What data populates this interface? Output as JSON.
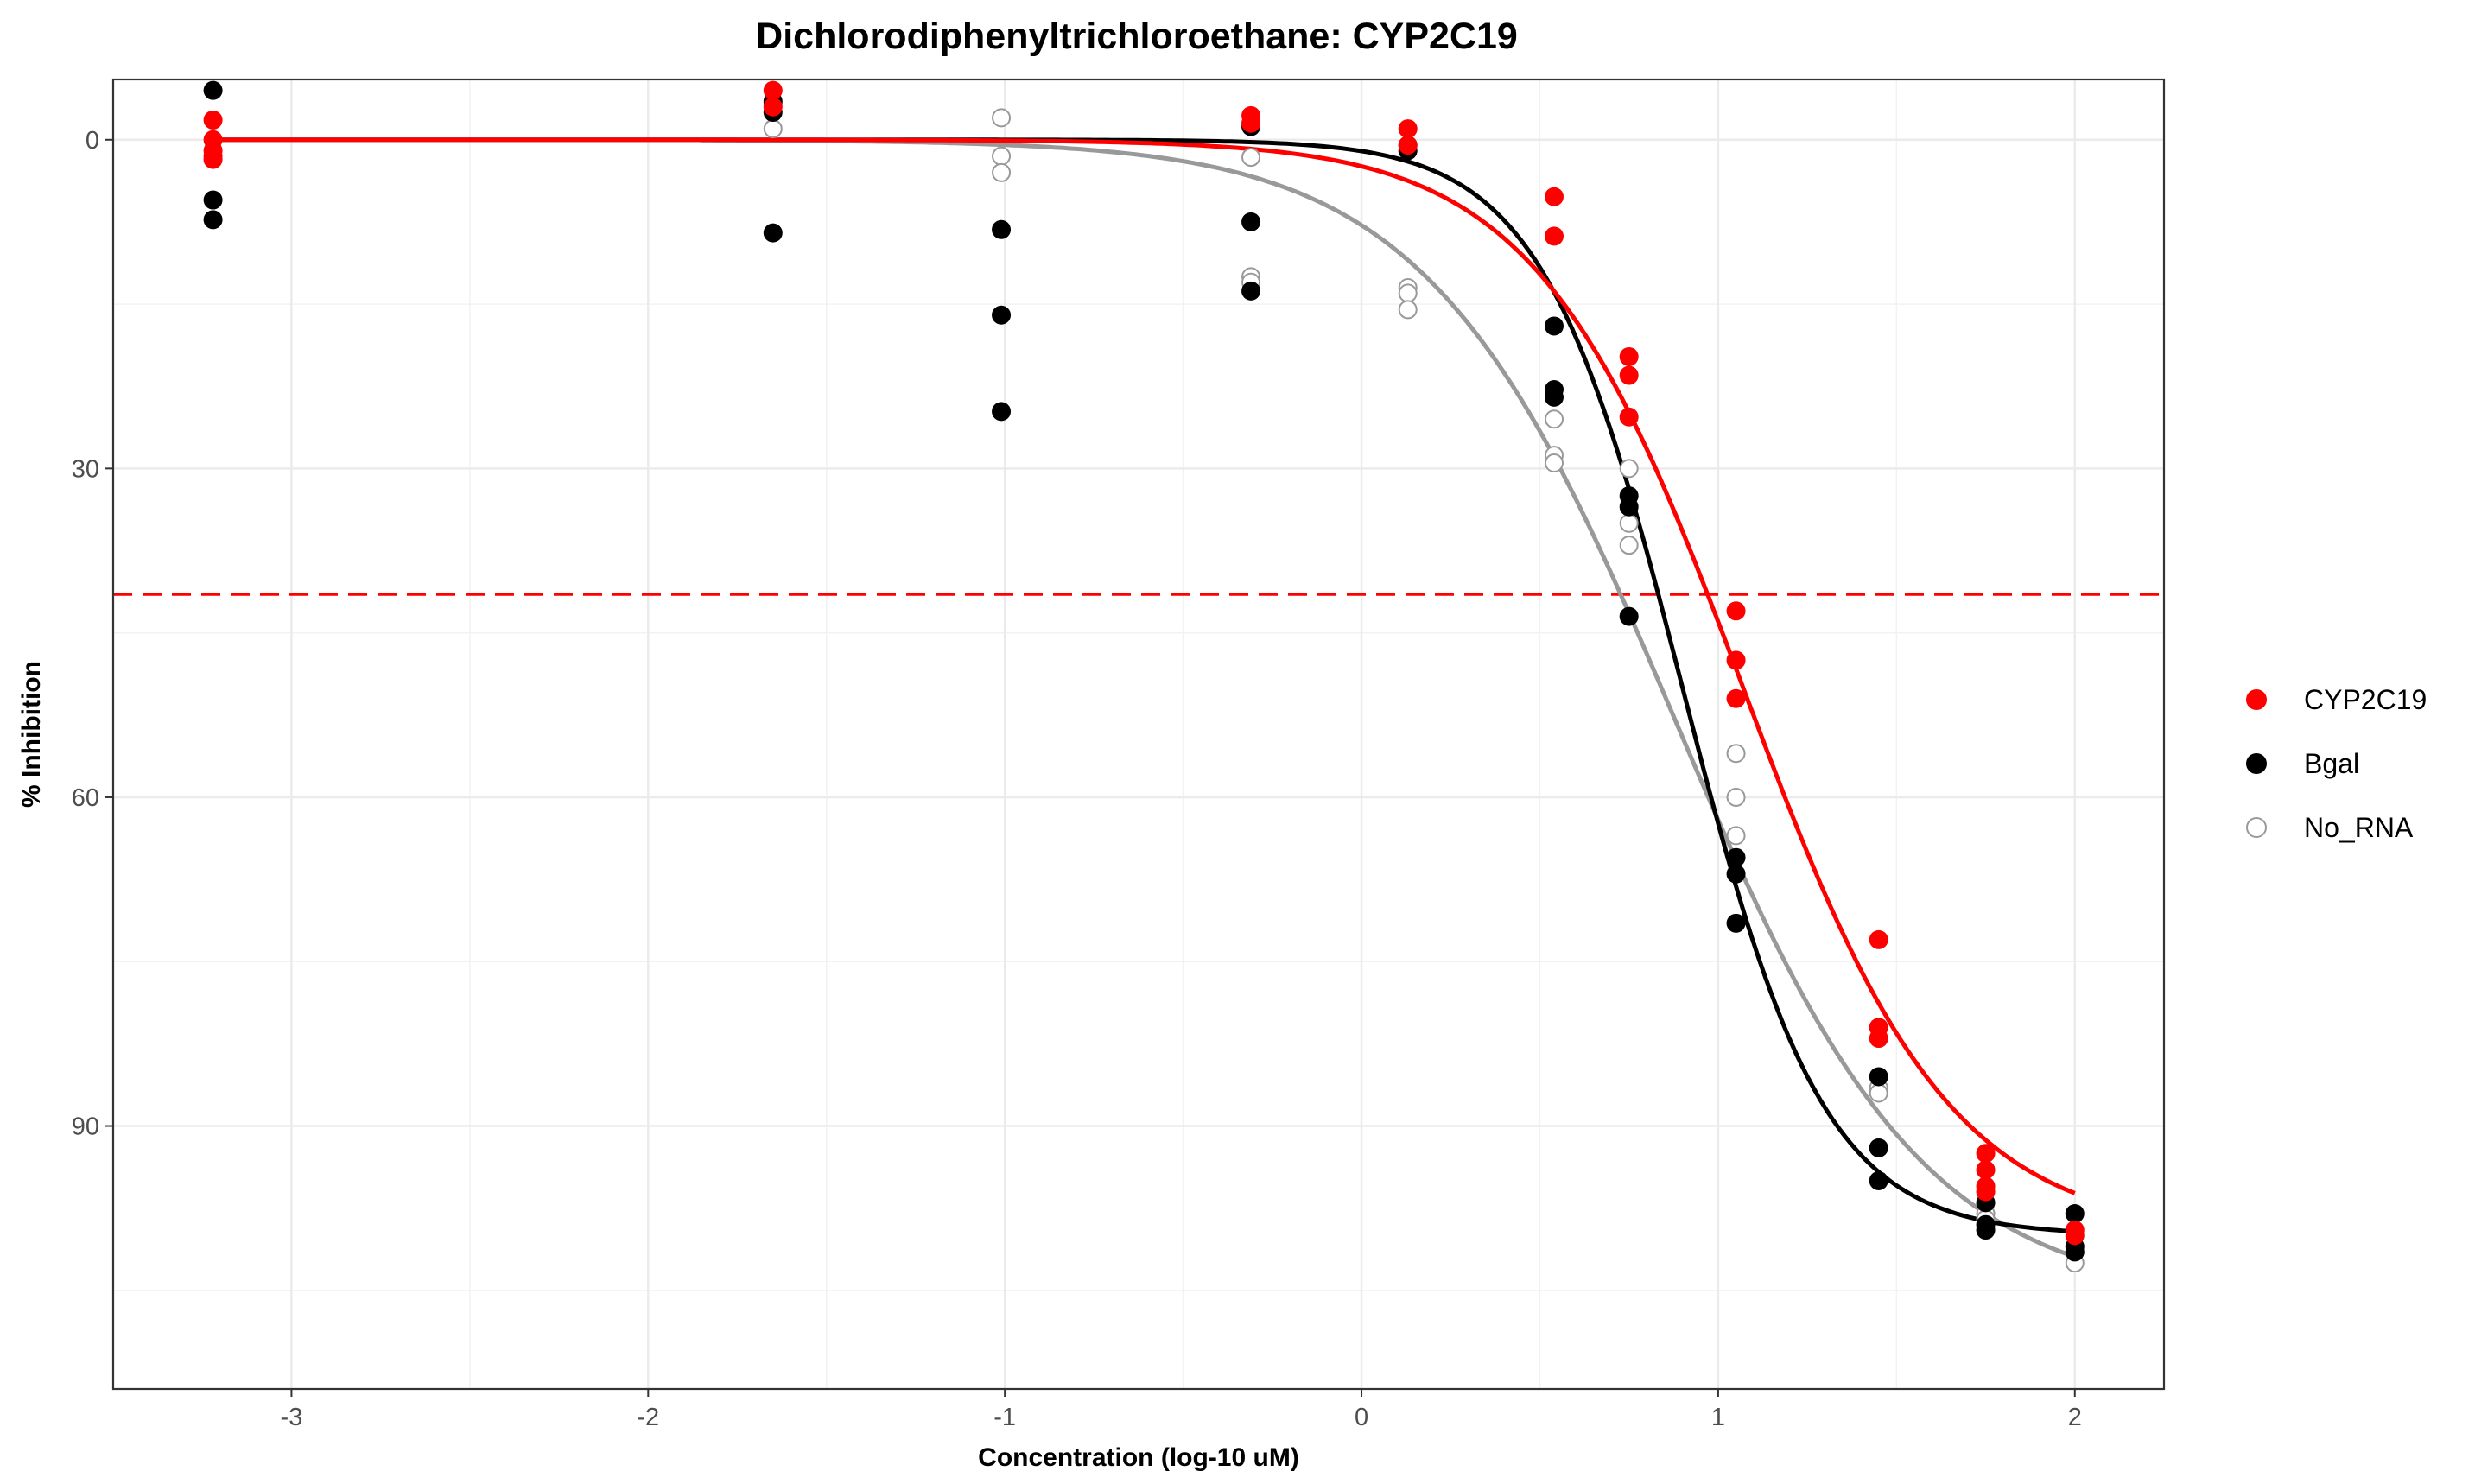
{
  "chart_data": {
    "type": "scatter",
    "title": "Dichlorodiphenyltrichloroethane: CYP2C19",
    "xlabel": "Concentration (log-10 uM)",
    "ylabel": "% Inhibition",
    "xlim": [
      -3.5,
      2.25
    ],
    "ylim": [
      -5.5,
      114
    ],
    "y_reversed": true,
    "x_ticks": [
      -3,
      -2,
      -1,
      0,
      1,
      2
    ],
    "y_ticks": [
      0,
      30,
      60,
      90
    ],
    "grid": true,
    "legend_position": "right",
    "reference_line": {
      "y": 41.5,
      "style": "dashed",
      "color": "#ff0000"
    },
    "series": [
      {
        "name": "CYP2C19",
        "color": "#ff0000",
        "marker": "filled-circle",
        "points": [
          [
            -3.22,
            -1.8
          ],
          [
            -3.22,
            0.0
          ],
          [
            -3.22,
            1.0
          ],
          [
            -3.22,
            1.5
          ],
          [
            -3.22,
            1.8
          ],
          [
            -1.65,
            -4.5
          ],
          [
            -1.65,
            -3.0
          ],
          [
            -0.31,
            -2.2
          ],
          [
            -0.31,
            -1.5
          ],
          [
            0.13,
            -1.0
          ],
          [
            0.13,
            0.5
          ],
          [
            0.54,
            5.2
          ],
          [
            0.54,
            8.8
          ],
          [
            0.75,
            19.8
          ],
          [
            0.75,
            21.5
          ],
          [
            0.75,
            25.3
          ],
          [
            1.05,
            43.0
          ],
          [
            1.05,
            47.5
          ],
          [
            1.05,
            51.0
          ],
          [
            1.45,
            73.0
          ],
          [
            1.45,
            81.0
          ],
          [
            1.45,
            82.0
          ],
          [
            1.75,
            92.5
          ],
          [
            1.75,
            94.0
          ],
          [
            1.75,
            95.5
          ],
          [
            1.75,
            96.0
          ],
          [
            2.0,
            99.5
          ],
          [
            2.0,
            100.0
          ]
        ],
        "curve": {
          "bottom": 0.0,
          "top": 100.0,
          "logIC50": 1.07,
          "hill": 1.5
        }
      },
      {
        "name": "Bgal",
        "color": "#000000",
        "marker": "filled-circle",
        "points": [
          [
            -3.22,
            -4.5
          ],
          [
            -3.22,
            5.5
          ],
          [
            -3.22,
            7.3
          ],
          [
            -1.65,
            -3.5
          ],
          [
            -1.65,
            -2.5
          ],
          [
            -1.65,
            8.5
          ],
          [
            -1.01,
            8.2
          ],
          [
            -1.01,
            16.0
          ],
          [
            -1.01,
            24.8
          ],
          [
            -0.31,
            -1.2
          ],
          [
            -0.31,
            7.5
          ],
          [
            -0.31,
            13.8
          ],
          [
            0.13,
            0.5
          ],
          [
            0.13,
            1.0
          ],
          [
            0.54,
            17.0
          ],
          [
            0.54,
            22.8
          ],
          [
            0.54,
            23.5
          ],
          [
            0.75,
            32.5
          ],
          [
            0.75,
            33.5
          ],
          [
            0.75,
            43.5
          ],
          [
            1.05,
            65.5
          ],
          [
            1.05,
            67.0
          ],
          [
            1.05,
            71.5
          ],
          [
            1.45,
            85.5
          ],
          [
            1.45,
            92.0
          ],
          [
            1.45,
            95.0
          ],
          [
            1.75,
            97.0
          ],
          [
            1.75,
            99.0
          ],
          [
            1.75,
            99.5
          ],
          [
            2.0,
            98.0
          ],
          [
            2.0,
            101.0
          ],
          [
            2.0,
            101.5
          ]
        ],
        "curve": {
          "bottom": 0.0,
          "top": 100.0,
          "logIC50": 0.9,
          "hill": 2.2
        }
      },
      {
        "name": "No_RNA",
        "color": "#999999",
        "marker": "open-circle",
        "points": [
          [
            -1.65,
            -3.2
          ],
          [
            -1.65,
            -1.0
          ],
          [
            -1.01,
            -2.0
          ],
          [
            -1.01,
            1.5
          ],
          [
            -1.01,
            3.0
          ],
          [
            -0.31,
            -1.5
          ],
          [
            -0.31,
            1.6
          ],
          [
            -0.31,
            12.5
          ],
          [
            -0.31,
            13.0
          ],
          [
            0.13,
            13.5
          ],
          [
            0.13,
            14.0
          ],
          [
            0.13,
            15.5
          ],
          [
            0.54,
            25.5
          ],
          [
            0.54,
            28.8
          ],
          [
            0.54,
            29.5
          ],
          [
            0.75,
            30.0
          ],
          [
            0.75,
            35.0
          ],
          [
            0.75,
            37.0
          ],
          [
            1.05,
            56.0
          ],
          [
            1.05,
            60.0
          ],
          [
            1.05,
            63.5
          ],
          [
            1.45,
            86.5
          ],
          [
            1.45,
            87.0
          ],
          [
            1.75,
            98.0
          ],
          [
            1.75,
            98.5
          ],
          [
            2.0,
            101.5
          ],
          [
            2.0,
            102.5
          ]
        ],
        "curve": {
          "bottom": 0.0,
          "top": 106.0,
          "logIC50": 0.88,
          "hill": 1.25,
          "x_start": -1.85
        }
      }
    ]
  }
}
